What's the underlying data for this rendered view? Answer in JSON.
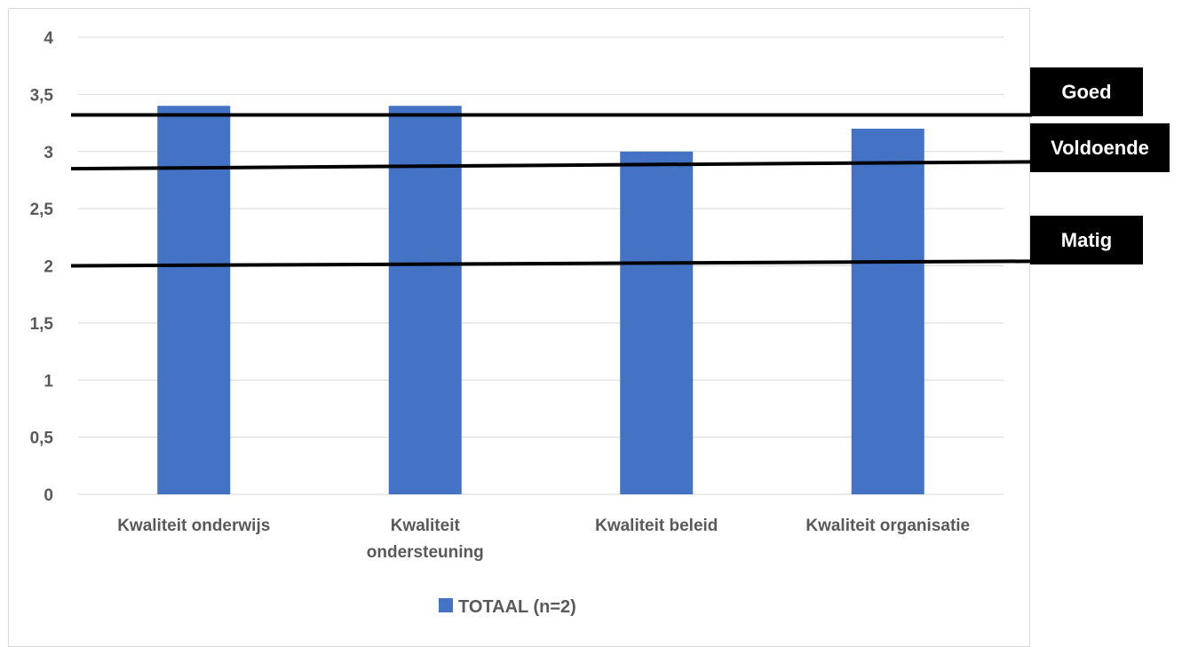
{
  "chart_data": {
    "type": "bar",
    "categories": [
      "Kwaliteit onderwijs",
      "Kwaliteit ondersteuning",
      "Kwaliteit beleid",
      "Kwaliteit organisatie"
    ],
    "category_label_lines": [
      [
        "Kwaliteit onderwijs"
      ],
      [
        "Kwaliteit",
        "ondersteuning"
      ],
      [
        "Kwaliteit beleid"
      ],
      [
        "Kwaliteit organisatie"
      ]
    ],
    "series": [
      {
        "name": "TOTAAL (n=2)",
        "values": [
          3.4,
          3.4,
          3.0,
          3.2
        ],
        "color": "#4472c4"
      }
    ],
    "ylim": [
      0,
      4
    ],
    "yticks": [
      0,
      0.5,
      1,
      1.5,
      2,
      2.5,
      3,
      3.5,
      4
    ],
    "ytick_labels": [
      "0",
      "0,5",
      "1",
      "1,5",
      "2",
      "2,5",
      "3",
      "3,5",
      "4"
    ],
    "grid": true,
    "legend": "bottom",
    "thresholds": [
      {
        "label": "Goed",
        "y_start": 3.32,
        "y_end": 3.32
      },
      {
        "label": "Voldoende",
        "y_start": 2.85,
        "y_end": 2.91
      },
      {
        "label": "Matig",
        "y_start": 2.0,
        "y_end": 2.04
      }
    ],
    "colors": {
      "bar": "#4472c4",
      "grid": "#d9d9d9",
      "text": "#595959",
      "threshold": "#000000"
    }
  }
}
